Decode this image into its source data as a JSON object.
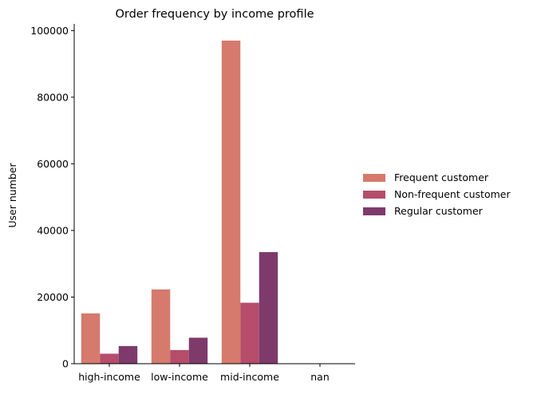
{
  "chart_data": {
    "type": "bar",
    "title": "Order frequency by income profile",
    "xlabel": "",
    "ylabel": "User number",
    "categories": [
      "high-income",
      "low-income",
      "mid-income",
      "nan"
    ],
    "series": [
      {
        "name": "Frequent customer",
        "color": "#d57a6d",
        "values": [
          15100,
          22300,
          97000,
          0
        ]
      },
      {
        "name": "Non-frequent customer",
        "color": "#b54d6b",
        "values": [
          3000,
          4100,
          18300,
          0
        ]
      },
      {
        "name": "Regular customer",
        "color": "#7e3a6b",
        "values": [
          5300,
          7800,
          33500,
          0
        ]
      }
    ],
    "ylim": [
      0,
      102000
    ],
    "yticks": [
      0,
      20000,
      40000,
      60000,
      80000,
      100000
    ],
    "ytick_labels": [
      "0",
      "20000",
      "40000",
      "60000",
      "80000",
      "100000"
    ],
    "grid": false,
    "legend_position": "right"
  }
}
